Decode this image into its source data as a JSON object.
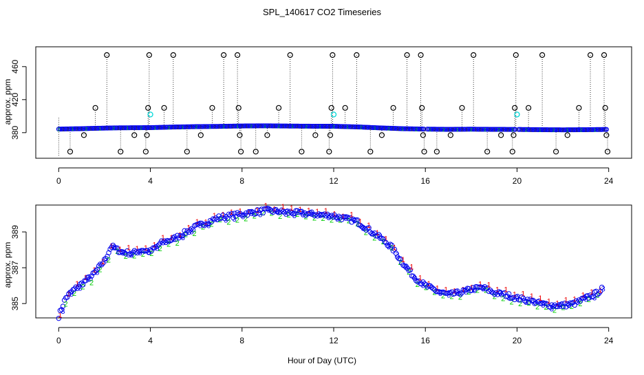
{
  "chart_data": [
    {
      "type": "scatter",
      "panel": "top",
      "title": "SPL_140617  CO2 Timeseries",
      "xlabel": "",
      "ylabel": "approx. ppm",
      "xlim": [
        -1,
        25
      ],
      "ylim": [
        349,
        484
      ],
      "xticks": [
        0,
        4,
        8,
        12,
        16,
        20,
        24
      ],
      "yticks": [
        380,
        420,
        460
      ],
      "grid": false,
      "colors": {
        "main": "#0000ee",
        "flag": "#00d8d8",
        "outlier": "#000000",
        "line": "#000000",
        "green": "#00cc00"
      },
      "main_series_knots": [
        [
          0,
          384.3
        ],
        [
          0.5,
          384.6
        ],
        [
          1,
          384.8
        ],
        [
          1.5,
          385.2
        ],
        [
          2,
          385.5
        ],
        [
          2.5,
          385.8
        ],
        [
          3,
          385.9
        ],
        [
          3.5,
          386.0
        ],
        [
          4,
          386.1
        ],
        [
          5,
          386.8
        ],
        [
          6,
          387.3
        ],
        [
          7,
          387.6
        ],
        [
          8,
          388.1
        ],
        [
          9,
          388.3
        ],
        [
          10,
          388.0
        ],
        [
          11,
          387.8
        ],
        [
          12,
          387.7
        ],
        [
          13,
          387.0
        ],
        [
          14,
          385.8
        ],
        [
          15,
          384.8
        ],
        [
          16,
          384.3
        ],
        [
          17,
          384.0
        ],
        [
          18,
          384.2
        ],
        [
          19,
          384.0
        ],
        [
          20,
          383.9
        ],
        [
          21,
          383.6
        ],
        [
          22,
          383.4
        ],
        [
          23,
          383.6
        ],
        [
          23.9,
          383.9
        ]
      ],
      "flagged_points": [
        [
          4,
          402
        ],
        [
          12,
          402
        ],
        [
          20,
          402
        ]
      ],
      "outliers": [
        {
          "x": 0.5,
          "y": 357
        },
        {
          "x": 1.1,
          "y": 377
        },
        {
          "x": 1.6,
          "y": 410
        },
        {
          "x": 2.1,
          "y": 474
        },
        {
          "x": 2.7,
          "y": 357
        },
        {
          "x": 3.3,
          "y": 377
        },
        {
          "x": 3.8,
          "y": 357
        },
        {
          "x": 3.85,
          "y": 377
        },
        {
          "x": 3.9,
          "y": 410
        },
        {
          "x": 3.95,
          "y": 474
        },
        {
          "x": 4.6,
          "y": 410
        },
        {
          "x": 5.0,
          "y": 474
        },
        {
          "x": 5.6,
          "y": 357
        },
        {
          "x": 6.2,
          "y": 377
        },
        {
          "x": 6.7,
          "y": 410
        },
        {
          "x": 7.2,
          "y": 474
        },
        {
          "x": 7.8,
          "y": 474
        },
        {
          "x": 7.85,
          "y": 410
        },
        {
          "x": 7.9,
          "y": 377
        },
        {
          "x": 7.95,
          "y": 357
        },
        {
          "x": 8.6,
          "y": 357
        },
        {
          "x": 9.1,
          "y": 377
        },
        {
          "x": 9.6,
          "y": 410
        },
        {
          "x": 10.1,
          "y": 474
        },
        {
          "x": 10.6,
          "y": 357
        },
        {
          "x": 11.2,
          "y": 377
        },
        {
          "x": 11.8,
          "y": 357
        },
        {
          "x": 11.85,
          "y": 377
        },
        {
          "x": 11.9,
          "y": 410
        },
        {
          "x": 11.95,
          "y": 474
        },
        {
          "x": 12.5,
          "y": 410
        },
        {
          "x": 13.0,
          "y": 474
        },
        {
          "x": 13.6,
          "y": 357
        },
        {
          "x": 14.1,
          "y": 377
        },
        {
          "x": 14.6,
          "y": 410
        },
        {
          "x": 15.2,
          "y": 474
        },
        {
          "x": 15.8,
          "y": 474
        },
        {
          "x": 15.85,
          "y": 410
        },
        {
          "x": 15.9,
          "y": 377
        },
        {
          "x": 15.95,
          "y": 357
        },
        {
          "x": 16.5,
          "y": 357
        },
        {
          "x": 17.1,
          "y": 377
        },
        {
          "x": 17.6,
          "y": 410
        },
        {
          "x": 18.1,
          "y": 474
        },
        {
          "x": 18.7,
          "y": 357
        },
        {
          "x": 19.3,
          "y": 377
        },
        {
          "x": 19.8,
          "y": 357
        },
        {
          "x": 19.85,
          "y": 377
        },
        {
          "x": 19.9,
          "y": 410
        },
        {
          "x": 19.95,
          "y": 474
        },
        {
          "x": 20.5,
          "y": 410
        },
        {
          "x": 21.1,
          "y": 474
        },
        {
          "x": 21.7,
          "y": 357
        },
        {
          "x": 22.2,
          "y": 377
        },
        {
          "x": 22.7,
          "y": 410
        },
        {
          "x": 23.2,
          "y": 474
        },
        {
          "x": 23.8,
          "y": 474
        },
        {
          "x": 23.85,
          "y": 410
        },
        {
          "x": 23.9,
          "y": 377
        },
        {
          "x": 23.95,
          "y": 357
        }
      ]
    },
    {
      "type": "scatter",
      "panel": "bottom",
      "title": "",
      "xlabel": "Hour of Day (UTC)",
      "ylabel": "approx. ppm",
      "xlim": [
        -1,
        25
      ],
      "ylim": [
        384.2,
        390.5
      ],
      "xticks": [
        0,
        4,
        8,
        12,
        16,
        20,
        24
      ],
      "yticks": [
        385,
        387,
        389
      ],
      "grid": false,
      "series": [
        {
          "name": "1",
          "color": "#ee0000"
        },
        {
          "name": "2",
          "color": "#00cc00"
        },
        {
          "name": "3",
          "color": "#0000ee"
        },
        {
          "name": "o",
          "color": "#0000ee"
        }
      ],
      "knots": [
        [
          0,
          384.3
        ],
        [
          0.3,
          385.3
        ],
        [
          0.6,
          385.7
        ],
        [
          1,
          386.1
        ],
        [
          1.5,
          386.6
        ],
        [
          2.0,
          387.4
        ],
        [
          2.3,
          388.2
        ],
        [
          2.7,
          387.9
        ],
        [
          3.2,
          387.8
        ],
        [
          3.6,
          388.0
        ],
        [
          4.0,
          387.9
        ],
        [
          4.5,
          388.4
        ],
        [
          5.0,
          388.6
        ],
        [
          6.0,
          389.3
        ],
        [
          7.0,
          389.8
        ],
        [
          8.0,
          390.0
        ],
        [
          9.0,
          390.2
        ],
        [
          10.0,
          390.1
        ],
        [
          11.0,
          390.0
        ],
        [
          12.0,
          389.9
        ],
        [
          13.0,
          389.6
        ],
        [
          14.0,
          388.7
        ],
        [
          14.5,
          388.2
        ],
        [
          15.0,
          387.3
        ],
        [
          15.5,
          386.5
        ],
        [
          16.0,
          386.0
        ],
        [
          16.5,
          385.7
        ],
        [
          17.0,
          385.5
        ],
        [
          17.5,
          385.6
        ],
        [
          18.0,
          385.8
        ],
        [
          18.5,
          385.9
        ],
        [
          19.0,
          385.6
        ],
        [
          19.5,
          385.5
        ],
        [
          20.0,
          385.3
        ],
        [
          20.5,
          385.2
        ],
        [
          21.0,
          385.0
        ],
        [
          21.5,
          384.9
        ],
        [
          22.0,
          384.9
        ],
        [
          22.5,
          385.0
        ],
        [
          23.0,
          385.3
        ],
        [
          23.5,
          385.6
        ],
        [
          23.7,
          385.8
        ]
      ]
    }
  ]
}
